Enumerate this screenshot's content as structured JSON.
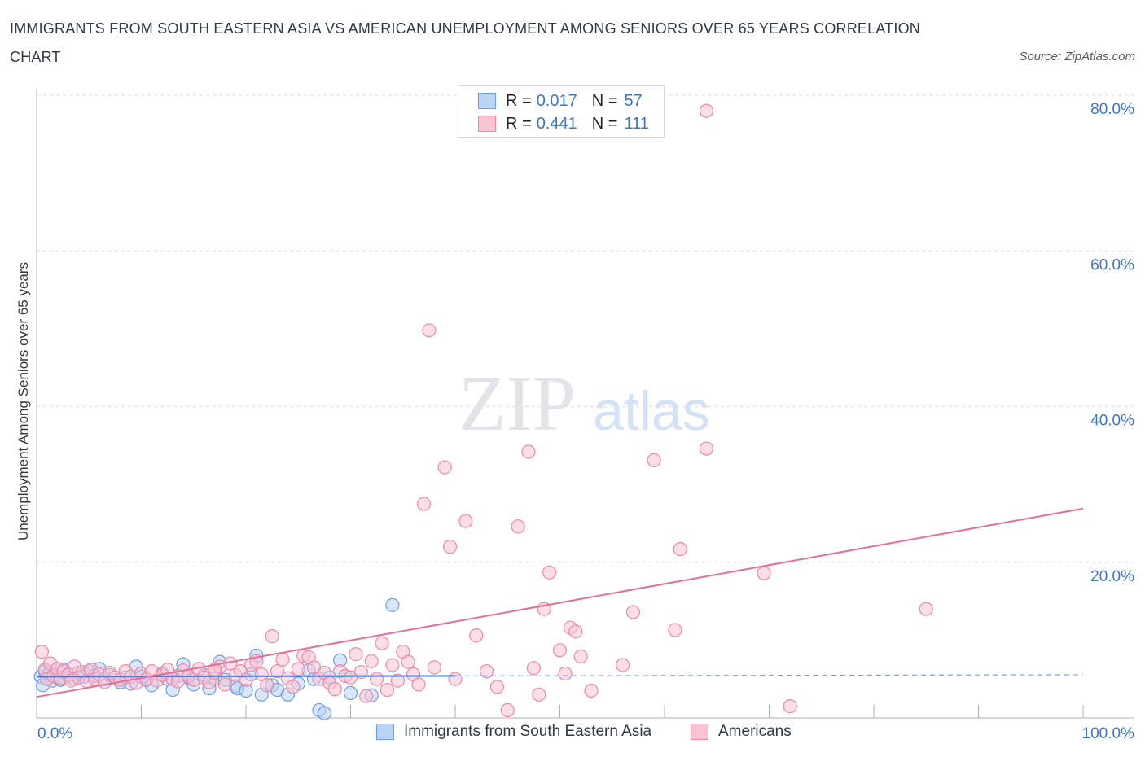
{
  "title": "IMMIGRANTS FROM SOUTH EASTERN ASIA VS AMERICAN UNEMPLOYMENT AMONG SENIORS OVER 65 YEARS CORRELATION CHART",
  "source": "Source: ZipAtlas.com",
  "watermark": {
    "zip": "ZIP",
    "atlas": "atlas"
  },
  "legend": {
    "r_label": "R =",
    "n_label": "N =",
    "series": [
      {
        "r": "0.017",
        "n": "57"
      },
      {
        "r": "0.441",
        "n": "111"
      }
    ]
  },
  "colors": {
    "blue_fill": "#b9d4f3",
    "blue_stroke": "#6e9de0",
    "blue_line": "#3c78d8",
    "pink_fill": "#f8c3d3",
    "pink_stroke": "#ec8aa8",
    "pink_line": "#e4709a",
    "axis_label": "#3b76c9",
    "grid": "#d9dde2"
  },
  "chart_data": {
    "type": "scatter",
    "title": "IMMIGRANTS FROM SOUTH EASTERN ASIA VS AMERICAN UNEMPLOYMENT AMONG SENIORS OVER 65 YEARS CORRELATION CHART",
    "xlabel": "",
    "ylabel": "Unemployment Among Seniors over 65 years",
    "xlim": [
      0,
      100
    ],
    "ylim": [
      0,
      80
    ],
    "x_tick_labels": [
      "0.0%",
      "100.0%"
    ],
    "y_ticks": [
      20,
      40,
      60,
      80
    ],
    "y_tick_labels": [
      "20.0%",
      "40.0%",
      "60.0%",
      "80.0%"
    ],
    "grid": true,
    "series": [
      {
        "name": "Immigrants from South Eastern Asia",
        "color": "blue",
        "r": 0.017,
        "n": 57,
        "trend": {
          "x": [
            0,
            40
          ],
          "y": [
            5.3,
            5.4
          ],
          "dash_to": 100
        },
        "points": [
          [
            0.4,
            5.3
          ],
          [
            0.6,
            4.2
          ],
          [
            0.8,
            6.0
          ],
          [
            1.0,
            5.0
          ],
          [
            1.2,
            5.7
          ],
          [
            1.5,
            4.8
          ],
          [
            1.8,
            5.5
          ],
          [
            2.0,
            5.2
          ],
          [
            2.3,
            4.9
          ],
          [
            2.6,
            6.2
          ],
          [
            3.0,
            5.6
          ],
          [
            3.5,
            5.1
          ],
          [
            4.0,
            5.8
          ],
          [
            4.5,
            5.3
          ],
          [
            5.0,
            6.0
          ],
          [
            5.5,
            5.4
          ],
          [
            6.0,
            6.3
          ],
          [
            6.5,
            5.0
          ],
          [
            7.0,
            5.5
          ],
          [
            8.0,
            4.6
          ],
          [
            8.5,
            5.2
          ],
          [
            9.0,
            4.4
          ],
          [
            9.5,
            6.6
          ],
          [
            10.0,
            5.3
          ],
          [
            10.5,
            4.9
          ],
          [
            11.0,
            4.2
          ],
          [
            12.0,
            5.7
          ],
          [
            12.5,
            5.0
          ],
          [
            13.0,
            3.6
          ],
          [
            13.5,
            5.4
          ],
          [
            14.0,
            6.9
          ],
          [
            14.5,
            5.2
          ],
          [
            15.0,
            4.3
          ],
          [
            16.0,
            5.5
          ],
          [
            16.5,
            3.8
          ],
          [
            17.0,
            5.0
          ],
          [
            17.5,
            7.2
          ],
          [
            18.0,
            4.9
          ],
          [
            19.0,
            4.1
          ],
          [
            19.2,
            3.8
          ],
          [
            20.0,
            3.5
          ],
          [
            20.5,
            5.6
          ],
          [
            21.0,
            8.0
          ],
          [
            21.5,
            3.0
          ],
          [
            22.5,
            4.2
          ],
          [
            23.0,
            3.6
          ],
          [
            24.0,
            3.0
          ],
          [
            25.0,
            4.4
          ],
          [
            26.0,
            6.1
          ],
          [
            26.5,
            5.0
          ],
          [
            27.0,
            1.0
          ],
          [
            27.5,
            0.6
          ],
          [
            28.0,
            5.2
          ],
          [
            29.0,
            7.4
          ],
          [
            30.0,
            3.2
          ],
          [
            32.0,
            2.9
          ],
          [
            34.0,
            14.5
          ]
        ]
      },
      {
        "name": "Americans",
        "color": "pink",
        "r": 0.441,
        "n": 111,
        "trend": {
          "x": [
            0,
            100
          ],
          "y": [
            2.7,
            26.9
          ]
        },
        "points": [
          [
            0.5,
            8.5
          ],
          [
            0.8,
            6.2
          ],
          [
            1.0,
            5.0
          ],
          [
            1.3,
            7.0
          ],
          [
            1.6,
            5.4
          ],
          [
            2.0,
            6.3
          ],
          [
            2.3,
            5.1
          ],
          [
            2.6,
            6.0
          ],
          [
            3.0,
            5.5
          ],
          [
            3.3,
            4.8
          ],
          [
            3.6,
            6.6
          ],
          [
            4.0,
            5.2
          ],
          [
            4.4,
            5.9
          ],
          [
            4.8,
            4.7
          ],
          [
            5.2,
            6.2
          ],
          [
            5.6,
            5.0
          ],
          [
            6.0,
            5.6
          ],
          [
            6.5,
            4.6
          ],
          [
            7.0,
            5.8
          ],
          [
            7.5,
            5.2
          ],
          [
            8.0,
            4.9
          ],
          [
            8.5,
            6.0
          ],
          [
            9.0,
            5.3
          ],
          [
            9.5,
            4.5
          ],
          [
            10.0,
            5.7
          ],
          [
            10.5,
            5.0
          ],
          [
            11.0,
            6.0
          ],
          [
            11.5,
            4.8
          ],
          [
            12.0,
            5.5
          ],
          [
            12.5,
            6.2
          ],
          [
            13.0,
            5.0
          ],
          [
            13.5,
            4.7
          ],
          [
            14.0,
            6.1
          ],
          [
            14.5,
            5.4
          ],
          [
            15.0,
            4.9
          ],
          [
            15.5,
            6.3
          ],
          [
            16.0,
            5.2
          ],
          [
            16.5,
            4.6
          ],
          [
            17.0,
            5.8
          ],
          [
            17.5,
            6.6
          ],
          [
            18.0,
            4.3
          ],
          [
            18.5,
            7.0
          ],
          [
            19.0,
            5.5
          ],
          [
            19.5,
            6.0
          ],
          [
            20.0,
            4.9
          ],
          [
            20.5,
            6.8
          ],
          [
            21.0,
            7.3
          ],
          [
            21.5,
            5.6
          ],
          [
            22.0,
            4.2
          ],
          [
            22.5,
            10.5
          ],
          [
            23.0,
            6.0
          ],
          [
            23.5,
            7.5
          ],
          [
            24.0,
            5.1
          ],
          [
            24.5,
            4.0
          ],
          [
            25.0,
            6.3
          ],
          [
            25.5,
            8.0
          ],
          [
            26.0,
            7.8
          ],
          [
            26.5,
            6.5
          ],
          [
            27.0,
            5.0
          ],
          [
            27.5,
            5.8
          ],
          [
            28.0,
            4.5
          ],
          [
            28.5,
            3.7
          ],
          [
            29.0,
            6.0
          ],
          [
            29.5,
            5.4
          ],
          [
            30.0,
            5.2
          ],
          [
            30.5,
            8.2
          ],
          [
            31.0,
            5.9
          ],
          [
            31.5,
            2.8
          ],
          [
            32.0,
            7.3
          ],
          [
            32.5,
            5.0
          ],
          [
            33.0,
            9.6
          ],
          [
            33.5,
            3.6
          ],
          [
            34.0,
            6.8
          ],
          [
            34.5,
            4.8
          ],
          [
            35.0,
            8.5
          ],
          [
            35.5,
            7.2
          ],
          [
            36.0,
            5.6
          ],
          [
            36.5,
            4.3
          ],
          [
            37.0,
            27.5
          ],
          [
            37.5,
            49.8
          ],
          [
            38.0,
            6.5
          ],
          [
            39.0,
            32.2
          ],
          [
            39.5,
            22.0
          ],
          [
            40.0,
            5.0
          ],
          [
            41.0,
            25.3
          ],
          [
            42.0,
            10.6
          ],
          [
            43.0,
            6.0
          ],
          [
            44.0,
            4.0
          ],
          [
            45.0,
            1.0
          ],
          [
            46.0,
            24.6
          ],
          [
            47.0,
            34.2
          ],
          [
            47.5,
            6.4
          ],
          [
            48.0,
            3.0
          ],
          [
            48.5,
            14.0
          ],
          [
            49.0,
            18.7
          ],
          [
            50.0,
            8.7
          ],
          [
            50.5,
            5.7
          ],
          [
            51.0,
            11.6
          ],
          [
            51.5,
            11.1
          ],
          [
            52.0,
            7.9
          ],
          [
            53.0,
            3.5
          ],
          [
            56.0,
            6.8
          ],
          [
            57.0,
            13.6
          ],
          [
            59.0,
            33.1
          ],
          [
            61.0,
            11.3
          ],
          [
            61.5,
            21.7
          ],
          [
            64.0,
            34.6
          ],
          [
            69.5,
            18.6
          ],
          [
            72.0,
            1.5
          ],
          [
            85.0,
            14.0
          ],
          [
            64.0,
            78.0
          ],
          [
            17.0,
            6.2
          ]
        ]
      }
    ]
  },
  "bottom_legend": {
    "items": [
      {
        "label": "Immigrants from South Eastern Asia"
      },
      {
        "label": "Americans"
      }
    ]
  }
}
